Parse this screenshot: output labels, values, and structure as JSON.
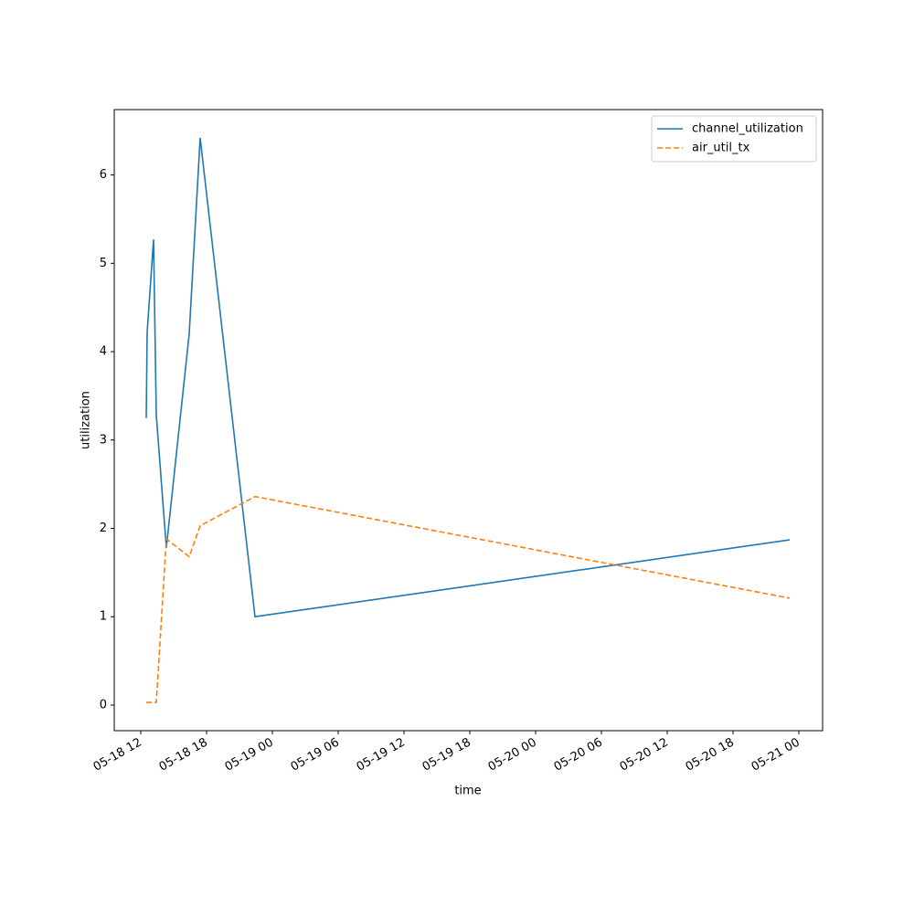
{
  "chart_data": {
    "type": "line",
    "xlabel": "time",
    "ylabel": "utilization",
    "x": [
      "05-18 12:30",
      "05-18 12:35",
      "05-18 13:10",
      "05-18 13:25",
      "05-18 14:20",
      "05-18 16:25",
      "05-18 17:25",
      "05-18 22:25",
      "05-20 23:10"
    ],
    "series": [
      {
        "name": "channel_utilization",
        "color": "#1f77b4",
        "dash": "solid",
        "values": [
          3.25,
          4.22,
          5.27,
          3.28,
          1.78,
          4.2,
          6.42,
          1.0,
          1.87
        ]
      },
      {
        "name": "air_util_tx",
        "color": "#ff7f0e",
        "dash": "dashed",
        "values": [
          0.03,
          0.03,
          0.03,
          0.03,
          1.88,
          1.68,
          2.03,
          2.36,
          1.21
        ]
      }
    ],
    "xlim": [
      "05-18 09:35",
      "05-21 02:10"
    ],
    "xticks": [
      "05-18 12",
      "05-18 18",
      "05-19 00",
      "05-19 06",
      "05-19 12",
      "05-19 18",
      "05-20 00",
      "05-20 06",
      "05-20 12",
      "05-20 18",
      "05-21 00"
    ],
    "ylim": [
      -0.29,
      6.74
    ],
    "yticks": [
      0,
      1,
      2,
      3,
      4,
      5,
      6
    ],
    "grid": false,
    "legend": "upper right"
  }
}
